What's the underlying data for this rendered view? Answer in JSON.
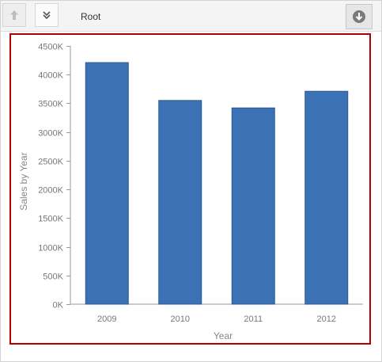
{
  "toolbar": {
    "breadcrumb": "Root",
    "up_icon": "arrow-up-icon",
    "drill_icon": "double-chevron-down-icon",
    "export_icon": "circle-arrow-down-icon"
  },
  "colors": {
    "bar": "#3a72b5",
    "bar_border": "#2c5a93",
    "highlight_border": "#b00000"
  },
  "chart_data": {
    "type": "bar",
    "categories": [
      "2009",
      "2010",
      "2011",
      "2012"
    ],
    "values": [
      4210000,
      3550000,
      3420000,
      3710000
    ],
    "title": "",
    "xlabel": "Year",
    "ylabel": "Sales by Year",
    "ylim": [
      0,
      4500000
    ],
    "yticks": [
      0,
      500000,
      1000000,
      1500000,
      2000000,
      2500000,
      3000000,
      3500000,
      4000000,
      4500000
    ],
    "ytick_labels": [
      "0K",
      "500K",
      "1000K",
      "1500K",
      "2000K",
      "2500K",
      "3000K",
      "3500K",
      "4000K",
      "4500K"
    ],
    "grid": false,
    "legend": "none"
  }
}
